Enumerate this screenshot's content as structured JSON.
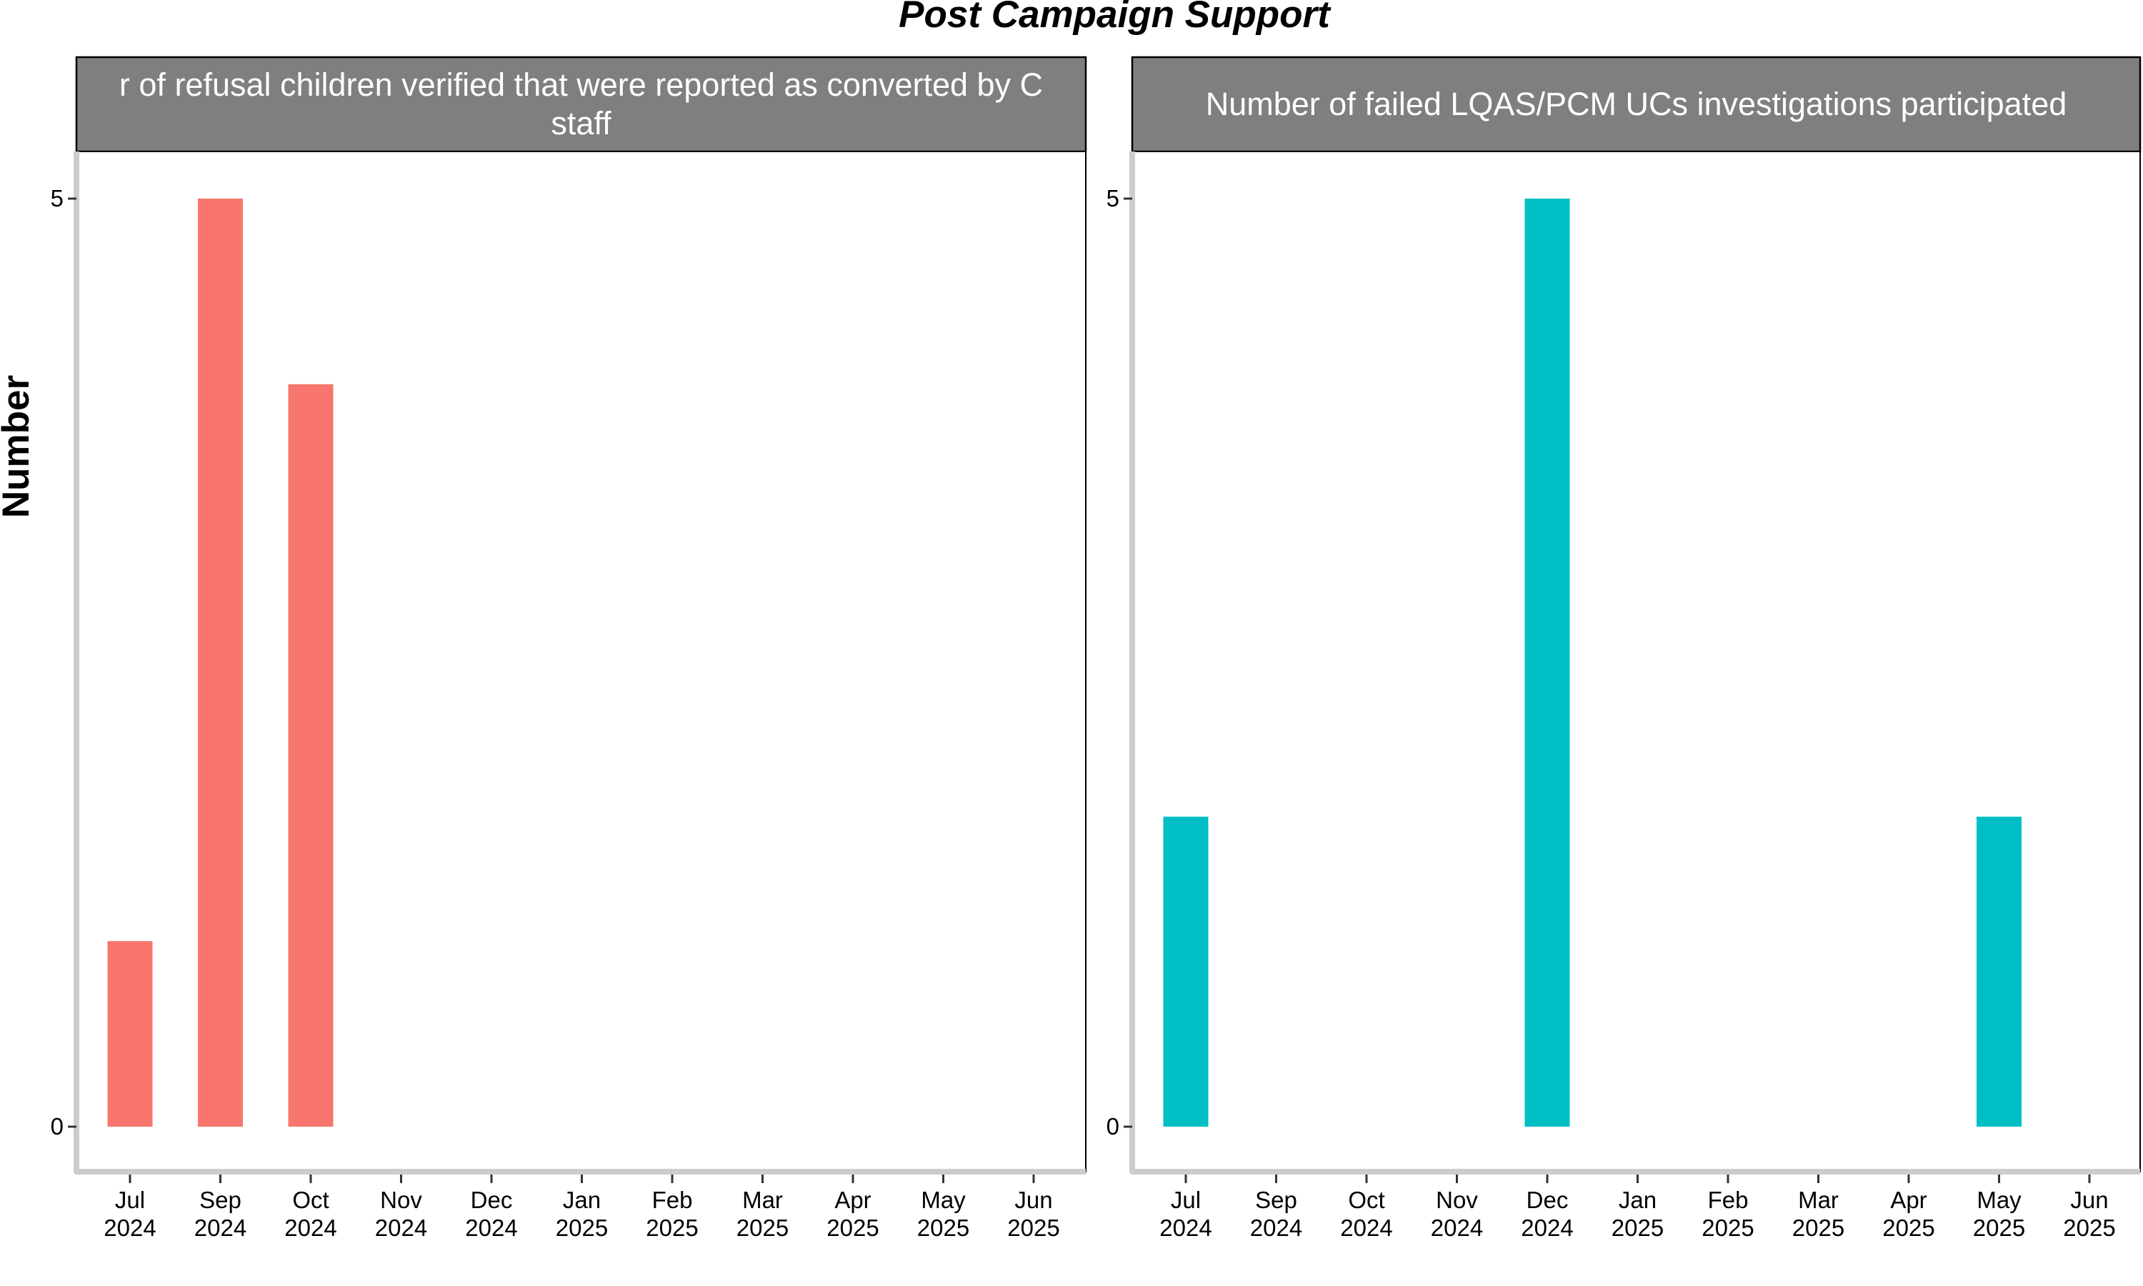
{
  "chart_data": {
    "type": "bar",
    "title": "Post Campaign Support",
    "ylabel": "Number",
    "xlabel": "",
    "categories": [
      [
        "Jul",
        "2024"
      ],
      [
        "Sep",
        "2024"
      ],
      [
        "Oct",
        "2024"
      ],
      [
        "Nov",
        "2024"
      ],
      [
        "Dec",
        "2024"
      ],
      [
        "Jan",
        "2025"
      ],
      [
        "Feb",
        "2025"
      ],
      [
        "Mar",
        "2025"
      ],
      [
        "Apr",
        "2025"
      ],
      [
        "May",
        "2025"
      ],
      [
        "Jun",
        "2025"
      ]
    ],
    "ylim": [
      0,
      5
    ],
    "yticks": [
      "0",
      "5"
    ],
    "grid": false,
    "legend": "none",
    "panels": [
      {
        "strip_lines": [
          "r of refusal children verified that were reported as converted by C",
          "staff"
        ],
        "color": "#F8766D",
        "values": [
          1,
          5,
          4,
          0,
          0,
          0,
          0,
          0,
          0,
          0,
          0
        ]
      },
      {
        "strip_lines": [
          "Number of failed LQAS/PCM UCs investigations participated"
        ],
        "color": "#00BFC4",
        "values": [
          1.67,
          0,
          0,
          0,
          5,
          0,
          0,
          0,
          0,
          1.67,
          0
        ]
      }
    ]
  }
}
